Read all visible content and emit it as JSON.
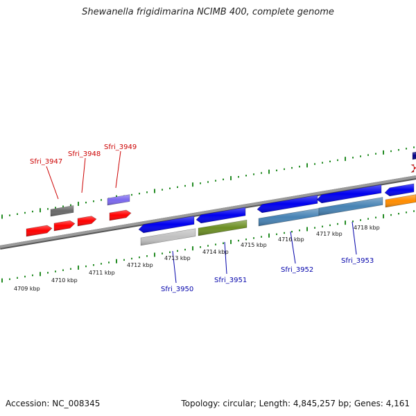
{
  "title": "Shewanella frigidimarina NCIMB 400, complete genome",
  "footer": {
    "accession": "Accession: NC_008345",
    "topology": "Topology: circular; Length: 4,845,257 bp; Genes: 4,161"
  },
  "scale": {
    "labels": [
      "4709 kbp",
      "4710 kbp",
      "4711 kbp",
      "4712 kbp",
      "4713 kbp",
      "4714 kbp",
      "4715 kbp",
      "4716 kbp",
      "4717 kbp",
      "4718 kbp"
    ]
  },
  "gene_labels": {
    "forward": [
      "Sfri_3947",
      "Sfri_3948",
      "Sfri_3949"
    ],
    "reverse": [
      "Sfri_3950",
      "Sfri_3951",
      "Sfri_3952",
      "Sfri_3953"
    ]
  },
  "colors": {
    "forward_label": "#cc0000",
    "reverse_label": "#0000aa",
    "backbone": "#808080",
    "tick": "#228b22",
    "cds_red": "#ff0000",
    "cds_blue": "#0000ee",
    "cog_grey": "#696969",
    "cog_purple": "#7b68ee",
    "cog_silver": "#c0c0c0",
    "cog_olive": "#6b8e23",
    "cog_steelblue": "#4682b4",
    "cog_orange": "#ff8c00"
  }
}
